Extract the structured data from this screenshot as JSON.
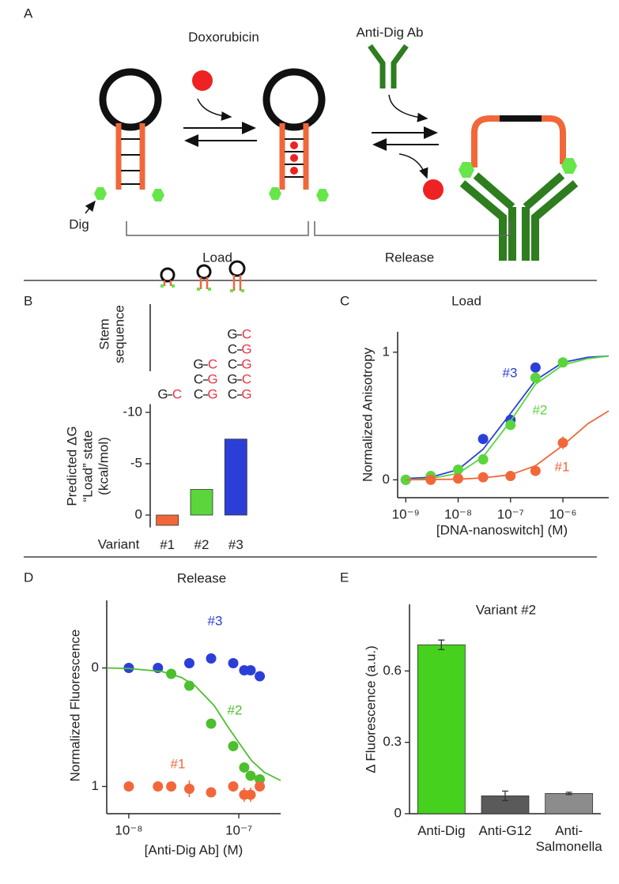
{
  "panel_labels": [
    "A",
    "B",
    "C",
    "D",
    "E"
  ],
  "diagram": {
    "doxorubicin": "Doxorubicin",
    "antibody": "Anti-Dig Ab",
    "dig": "Dig",
    "load": "Load",
    "release": "Release"
  },
  "stem_sequence": {
    "label": [
      "Stem",
      "sequence"
    ],
    "columns": [
      [
        [
          "G",
          "C"
        ]
      ],
      [
        [
          "G",
          "C"
        ],
        [
          "C",
          "G"
        ],
        [
          "C",
          "G"
        ]
      ],
      [
        [
          "G",
          "C"
        ],
        [
          "C",
          "G"
        ],
        [
          "C",
          "G"
        ],
        [
          "G",
          "C"
        ],
        [
          "C",
          "G"
        ]
      ]
    ]
  },
  "chart_data": [
    {
      "type": "bar",
      "y_label": [
        "Predicted ΔG",
        "“Load” state",
        "(kcal/mol)"
      ],
      "x_label": "Variant",
      "categories": [
        "#1",
        "#2",
        "#3"
      ],
      "values": [
        1.0,
        -2.5,
        -7.4
      ],
      "colors": [
        "#f2673a",
        "#5ad63c",
        "#2b3fd8"
      ],
      "ylim": [
        1.2,
        -10.8
      ],
      "yticks": [
        -10,
        -5,
        0
      ]
    },
    {
      "type": "scatter",
      "title": "Load",
      "x_label": "[DNA-nanoswitch] (M)",
      "y_label": "Normalized Anisotropy",
      "xscale": "log",
      "xlim": [
        7e-10,
        7.5e-06
      ],
      "xticks": [
        {
          "value": 1e-09,
          "label": "10⁻⁹"
        },
        {
          "value": 1e-08,
          "label": "10⁻⁸"
        },
        {
          "value": 1e-07,
          "label": "10⁻⁷"
        },
        {
          "value": 1e-06,
          "label": "10⁻⁶"
        }
      ],
      "ylim": [
        -0.14,
        1.16
      ],
      "yticks": [
        0,
        1
      ],
      "series": [
        {
          "name": "#3",
          "color": "#2b3fd8",
          "x": [
            1e-09,
            3e-09,
            3e-08,
            1e-07,
            3e-07
          ],
          "values": [
            0,
            0.02,
            0.32,
            0.47,
            0.88
          ],
          "fit_x": [
            1e-09,
            3e-09,
            1e-08,
            3e-08,
            1e-07,
            3e-07,
            1e-06,
            3e-06,
            7.5e-06
          ],
          "fit_values": [
            0.01,
            0.02,
            0.08,
            0.24,
            0.52,
            0.78,
            0.92,
            0.96,
            0.97
          ]
        },
        {
          "name": "#2",
          "color": "#5ad63c",
          "x": [
            1e-09,
            3e-09,
            1e-08,
            3e-08,
            1e-07,
            3e-07,
            1e-06
          ],
          "values": [
            0,
            0.03,
            0.08,
            0.16,
            0.43,
            0.8,
            0.92
          ],
          "fit_x": [
            1e-09,
            3e-09,
            1e-08,
            3e-08,
            1e-07,
            3e-07,
            1e-06,
            3e-06,
            7.5e-06
          ],
          "fit_values": [
            0,
            0.01,
            0.05,
            0.18,
            0.46,
            0.75,
            0.9,
            0.95,
            0.97
          ]
        },
        {
          "name": "#1",
          "color": "#f2673a",
          "x": [
            3e-09,
            1e-08,
            3e-08,
            1e-07,
            3e-07,
            1e-06
          ],
          "values": [
            0,
            0.01,
            0.02,
            0.03,
            0.07,
            0.29
          ],
          "errors": [
            null,
            null,
            null,
            null,
            null,
            0.05
          ],
          "fit_x": [
            1e-09,
            1e-08,
            3e-08,
            1e-07,
            3e-07,
            1e-06,
            3e-06,
            7.5e-06
          ],
          "fit_values": [
            0,
            0.005,
            0.015,
            0.04,
            0.11,
            0.27,
            0.44,
            0.54
          ]
        }
      ]
    },
    {
      "type": "scatter",
      "title": "Release",
      "x_label": "[Anti-Dig Ab] (M)",
      "y_label": "Normalized Fluorescence",
      "xscale": "log",
      "xlim": [
        6.3e-09,
        2.4e-07
      ],
      "xticks": [
        {
          "value": 1e-08,
          "label": "10⁻⁸"
        },
        {
          "value": 1e-07,
          "label": "10⁻⁷"
        }
      ],
      "ylim": [
        1.23,
        -0.57
      ],
      "yticks": [
        0,
        1
      ],
      "series": [
        {
          "name": "#3",
          "color": "#2b3fd8",
          "x": [
            1e-08,
            1.84e-08,
            3.55e-08,
            5.6e-08,
            8.9e-08,
            1.12e-07,
            1.28e-07,
            1.55e-07
          ],
          "values": [
            0,
            0,
            -0.04,
            -0.08,
            -0.04,
            0.02,
            0.02,
            0.07
          ]
        },
        {
          "name": "#2",
          "color": "#4cbf2e",
          "x": [
            2.43e-08,
            3.55e-08,
            5.6e-08,
            8.9e-08,
            1.12e-07,
            1.28e-07,
            1.55e-07
          ],
          "values": [
            0.05,
            0.15,
            0.47,
            0.66,
            0.84,
            0.91,
            0.94
          ],
          "fit_x": [
            6.3e-09,
            1e-08,
            2e-08,
            3e-08,
            4e-08,
            6e-08,
            8e-08,
            1e-07,
            1.3e-07,
            1.7e-07,
            2.4e-07
          ],
          "fit_values": [
            0,
            0.005,
            0.03,
            0.08,
            0.15,
            0.32,
            0.5,
            0.63,
            0.78,
            0.88,
            0.95
          ]
        },
        {
          "name": "#1",
          "color": "#f2673a",
          "x": [
            1e-08,
            1.84e-08,
            2.43e-08,
            3.55e-08,
            5.6e-08,
            8.9e-08,
            1.12e-07,
            1.28e-07,
            1.55e-07
          ],
          "values": [
            1,
            1,
            1,
            1.02,
            1.05,
            1,
            1.07,
            1.07,
            1.0
          ],
          "errors": [
            null,
            null,
            null,
            0.07,
            null,
            null,
            0.06,
            0.06,
            null
          ]
        }
      ]
    },
    {
      "type": "bar",
      "title": "Variant #2",
      "y_label": "Δ Fluorescence (a.u.)",
      "categories": [
        "Anti-Dig",
        "Anti-G12",
        "Anti-\nSalmonella"
      ],
      "values": [
        0.71,
        0.075,
        0.085
      ],
      "errors": [
        0.02,
        0.02,
        0.005
      ],
      "colors": [
        "#45d11e",
        "#5a5a5a",
        "#8c8c8c"
      ],
      "ylim": [
        0,
        0.88
      ],
      "yticks": [
        0,
        0.3,
        0.6
      ]
    }
  ]
}
